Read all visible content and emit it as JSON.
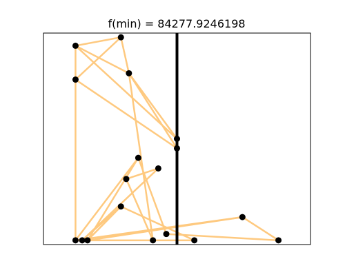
{
  "chart_data": {
    "type": "scatter",
    "title": "f(min) = 84277.9246198",
    "xlim": [
      0,
      1
    ],
    "ylim": [
      0,
      1
    ],
    "grid": false,
    "axes_ticks": false,
    "colors": {
      "edge": "#fec97f",
      "node": "#000000",
      "divider": "#000000"
    },
    "divider_x": 0.5,
    "nodes": [
      {
        "id": 0,
        "x": 0.12,
        "y": 0.94
      },
      {
        "id": 1,
        "x": 0.29,
        "y": 0.98
      },
      {
        "id": 2,
        "x": 0.32,
        "y": 0.81
      },
      {
        "id": 3,
        "x": 0.12,
        "y": 0.78
      },
      {
        "id": 4,
        "x": 0.5,
        "y": 0.5
      },
      {
        "id": 5,
        "x": 0.5,
        "y": 0.455
      },
      {
        "id": 6,
        "x": 0.355,
        "y": 0.41
      },
      {
        "id": 7,
        "x": 0.43,
        "y": 0.36
      },
      {
        "id": 8,
        "x": 0.31,
        "y": 0.31
      },
      {
        "id": 9,
        "x": 0.29,
        "y": 0.18
      },
      {
        "id": 10,
        "x": 0.12,
        "y": 0.02
      },
      {
        "id": 11,
        "x": 0.145,
        "y": 0.02
      },
      {
        "id": 12,
        "x": 0.165,
        "y": 0.02
      },
      {
        "id": 13,
        "x": 0.41,
        "y": 0.02
      },
      {
        "id": 14,
        "x": 0.46,
        "y": 0.05
      },
      {
        "id": 15,
        "x": 0.565,
        "y": 0.02
      },
      {
        "id": 16,
        "x": 0.745,
        "y": 0.13
      },
      {
        "id": 17,
        "x": 0.88,
        "y": 0.02
      }
    ],
    "edges": [
      [
        0,
        1
      ],
      [
        1,
        2
      ],
      [
        0,
        2
      ],
      [
        3,
        1
      ],
      [
        0,
        4
      ],
      [
        2,
        4
      ],
      [
        2,
        5
      ],
      [
        3,
        5
      ],
      [
        0,
        10
      ],
      [
        2,
        13
      ],
      [
        6,
        10
      ],
      [
        6,
        12
      ],
      [
        6,
        14
      ],
      [
        7,
        11
      ],
      [
        7,
        8
      ],
      [
        8,
        13
      ],
      [
        9,
        11
      ],
      [
        9,
        15
      ],
      [
        10,
        16
      ],
      [
        12,
        16
      ],
      [
        16,
        17
      ],
      [
        14,
        17
      ],
      [
        10,
        15
      ],
      [
        12,
        9
      ]
    ]
  }
}
